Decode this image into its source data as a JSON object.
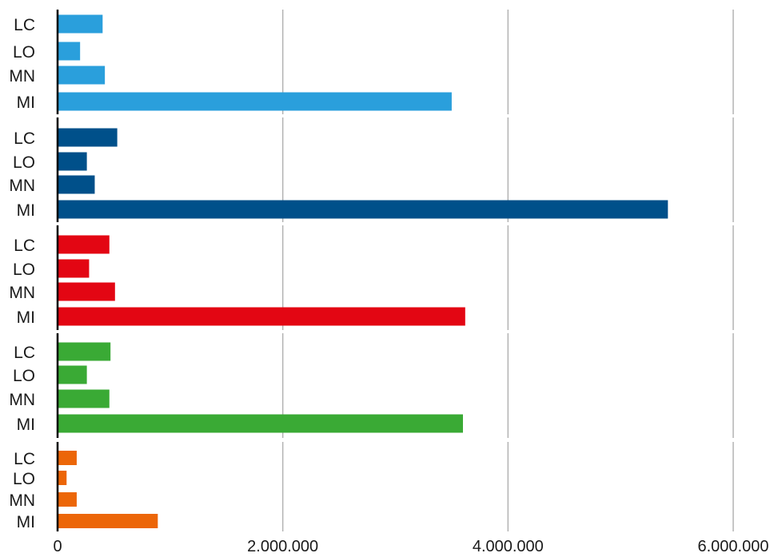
{
  "chart_data": {
    "type": "bar",
    "orientation": "horizontal",
    "title": "",
    "xlabel": "",
    "ylabel": "",
    "xlim": [
      0,
      6000000
    ],
    "x_ticks": [
      0,
      2000000,
      4000000,
      6000000
    ],
    "x_tick_labels": [
      "0",
      "2.000.000",
      "4.000.000",
      "6.000.000"
    ],
    "grid": "vertical",
    "legend": "none",
    "categories": [
      "LC",
      "LO",
      "MN",
      "MI"
    ],
    "groups": [
      {
        "color": "#2a9fdc",
        "values": [
          400000,
          200000,
          420000,
          3500000
        ]
      },
      {
        "color": "#00508a",
        "values": [
          530000,
          260000,
          330000,
          5420000
        ]
      },
      {
        "color": "#e30613",
        "values": [
          460000,
          280000,
          510000,
          3620000
        ]
      },
      {
        "color": "#3aaa35",
        "values": [
          470000,
          260000,
          460000,
          3600000
        ]
      },
      {
        "color": "#ec6608",
        "values": [
          170000,
          80000,
          170000,
          890000
        ]
      }
    ]
  }
}
